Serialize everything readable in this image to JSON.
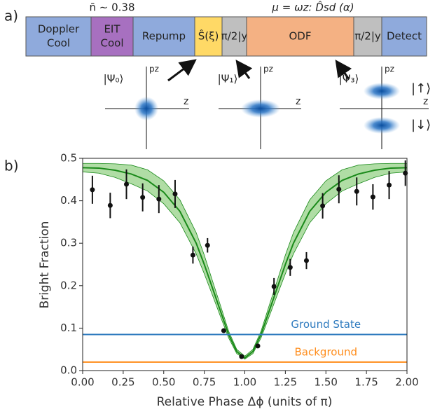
{
  "panel_a": {
    "label": "a)",
    "nbar": "n̄ ∼ 0.38",
    "mu": "μ = ωz: D̂sd (α)",
    "blocks": [
      {
        "lines": [
          "Doppler",
          "Cool"
        ],
        "color": "#8faadc"
      },
      {
        "lines": [
          "EIT",
          "Cool"
        ],
        "color": "#a770c0"
      },
      {
        "lines": [
          "Repump"
        ],
        "color": "#8faadc"
      },
      {
        "lines": [
          "Ŝ(ξ)"
        ],
        "color": "#ffd966"
      },
      {
        "lines": [
          "π/2|y"
        ],
        "color": "#bfbfbf"
      },
      {
        "lines": [
          "ODF"
        ],
        "color": "#f4b183"
      },
      {
        "lines": [
          "π/2|y"
        ],
        "color": "#bfbfbf"
      },
      {
        "lines": [
          "Detect"
        ],
        "color": "#8faadc"
      }
    ],
    "states": [
      {
        "label": "|Ψ₀⟩",
        "p_axis": "pz",
        "z_axis": "z"
      },
      {
        "label": "|Ψ₁⟩",
        "p_axis": "pz",
        "z_axis": "z"
      },
      {
        "label": "|Ψ₃⟩",
        "p_axis": "pz",
        "z_axis": "z",
        "spins": [
          "|↑⟩",
          "|↓⟩"
        ]
      }
    ]
  },
  "chart_data": {
    "type": "scatter",
    "panel_label": "b)",
    "x_label": "Relative Phase Δϕ (units of π)",
    "y_label": "Bright Fraction",
    "xlim": [
      0,
      2
    ],
    "ylim": [
      0,
      0.5
    ],
    "xticks": [
      {
        "value": 0,
        "label": "0.00"
      },
      0.25,
      {
        "value": 0.5,
        "label": "0.50"
      },
      0.75,
      {
        "value": 1,
        "label": "1.00"
      },
      1.25,
      {
        "value": 1.5,
        "label": "1.50"
      },
      1.75,
      {
        "value": 2,
        "label": "2.00"
      }
    ],
    "yticks": [
      {
        "value": 0,
        "label": "0.0"
      },
      0.1,
      0.2,
      0.3,
      0.4,
      0.5
    ],
    "x": [
      0.06,
      0.17,
      0.27,
      0.37,
      0.47,
      0.57,
      0.68,
      0.77,
      0.87,
      0.98,
      1.08,
      1.18,
      1.28,
      1.38,
      1.48,
      1.58,
      1.69,
      1.79,
      1.89,
      1.99
    ],
    "values": [
      0.426,
      0.389,
      0.439,
      0.408,
      0.404,
      0.416,
      0.272,
      0.295,
      0.094,
      0.033,
      0.058,
      0.198,
      0.243,
      0.259,
      0.388,
      0.427,
      0.422,
      0.409,
      0.437,
      0.465
    ],
    "errors": [
      0.033,
      0.03,
      0.035,
      0.033,
      0.033,
      0.033,
      0.02,
      0.017,
      0.005,
      0.004,
      0.004,
      0.02,
      0.02,
      0.02,
      0.03,
      0.033,
      0.033,
      0.03,
      0.033,
      0.03
    ],
    "color": "#111111",
    "fit": {
      "color": "#1a8a1a",
      "band_color": "#8fce7f",
      "x": [
        0,
        0.1,
        0.2,
        0.3,
        0.4,
        0.5,
        0.6,
        0.7,
        0.75,
        0.8,
        0.85,
        0.9,
        0.95,
        1,
        1.05,
        1.1,
        1.15,
        1.2,
        1.25,
        1.3,
        1.4,
        1.5,
        1.6,
        1.7,
        1.8,
        1.9,
        2
      ],
      "values": [
        0.478,
        0.477,
        0.472,
        0.463,
        0.448,
        0.42,
        0.375,
        0.3,
        0.25,
        0.195,
        0.14,
        0.085,
        0.045,
        0.03,
        0.045,
        0.085,
        0.14,
        0.195,
        0.25,
        0.3,
        0.375,
        0.42,
        0.448,
        0.463,
        0.472,
        0.477,
        0.478
      ],
      "lower": [
        0.468,
        0.465,
        0.455,
        0.44,
        0.423,
        0.393,
        0.348,
        0.275,
        0.228,
        0.178,
        0.127,
        0.077,
        0.04,
        0.027,
        0.04,
        0.077,
        0.127,
        0.178,
        0.228,
        0.275,
        0.348,
        0.393,
        0.423,
        0.44,
        0.455,
        0.465,
        0.468
      ],
      "upper": [
        0.488,
        0.488,
        0.487,
        0.484,
        0.473,
        0.447,
        0.402,
        0.325,
        0.272,
        0.212,
        0.153,
        0.093,
        0.05,
        0.034,
        0.05,
        0.093,
        0.153,
        0.212,
        0.272,
        0.325,
        0.402,
        0.447,
        0.473,
        0.484,
        0.487,
        0.488,
        0.488
      ]
    },
    "hlines": [
      {
        "name": "Ground State",
        "value": 0.085,
        "color": "#2f7bbf"
      },
      {
        "name": "Background",
        "value": 0.02,
        "color": "#ff8c1a"
      }
    ]
  }
}
